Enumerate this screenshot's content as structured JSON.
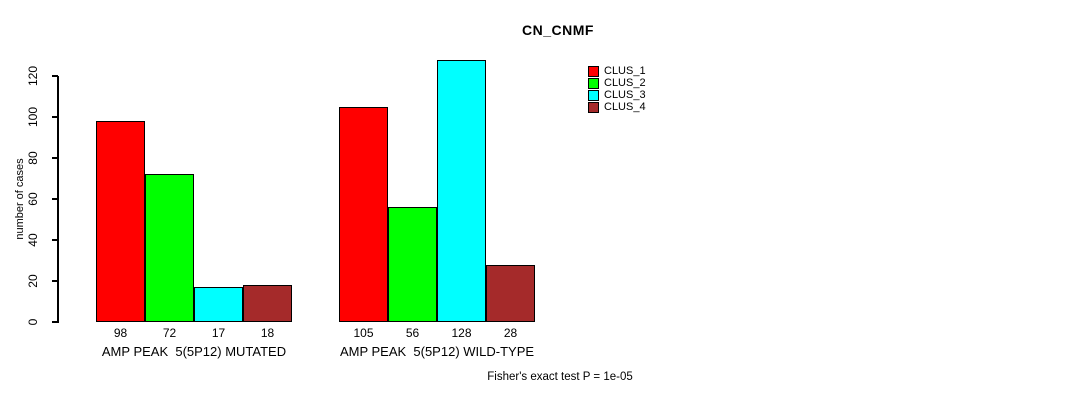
{
  "chart_data": {
    "type": "bar",
    "title": "CN_CNMF",
    "xlabel": "",
    "ylabel": "number of cases",
    "ylim": [
      0,
      120
    ],
    "yticks": [
      0,
      20,
      40,
      60,
      80,
      100,
      120
    ],
    "grid": false,
    "legend_position": "top-right",
    "categories": [
      "AMP PEAK  5(5P12) MUTATED",
      "AMP PEAK  5(5P12) WILD-TYPE"
    ],
    "series": [
      {
        "name": "CLUS_1",
        "color": "#FF0000",
        "values": [
          98,
          105
        ]
      },
      {
        "name": "CLUS_2",
        "color": "#00FF00",
        "values": [
          72,
          56
        ]
      },
      {
        "name": "CLUS_3",
        "color": "#00FFFF",
        "values": [
          17,
          128
        ]
      },
      {
        "name": "CLUS_4",
        "color": "#A52A2A",
        "values": [
          18,
          28
        ]
      }
    ],
    "bar_value_labels": [
      [
        98,
        72,
        17,
        18
      ],
      [
        105,
        56,
        128,
        28
      ]
    ],
    "annotation": "Fisher's exact test P = 1e-05"
  },
  "colors": {
    "background": "#FFFFFF",
    "axis": "#000000",
    "bar_border": "#000000",
    "text": "#000000"
  }
}
